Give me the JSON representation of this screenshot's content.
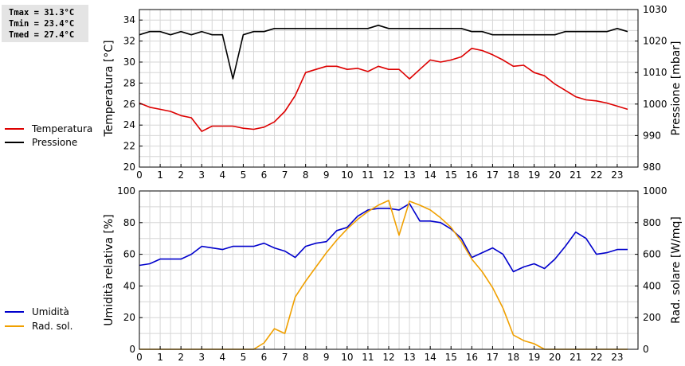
{
  "stats": {
    "tmax": "Tmax = 31.3°C",
    "tmin": "Tmin = 23.4°C",
    "tmed": "Tmed = 27.4°C"
  },
  "colors": {
    "temperature": "#dd0000",
    "pressure": "#000000",
    "humidity": "#0000cc",
    "radiation": "#f0a000",
    "grid": "#d6d6d6"
  },
  "legend_top": [
    {
      "label": "Temperatura",
      "color": "#dd0000"
    },
    {
      "label": "Pressione",
      "color": "#000000"
    }
  ],
  "legend_bottom": [
    {
      "label": "Umidità",
      "color": "#0000cc"
    },
    {
      "label": "Rad. sol.",
      "color": "#f0a000"
    }
  ],
  "chart_data": [
    {
      "type": "line",
      "xlim": [
        0,
        24
      ],
      "xticks": [
        "0",
        "1",
        "2",
        "3",
        "4",
        "5",
        "6",
        "7",
        "8",
        "9",
        "10",
        "11",
        "12",
        "13",
        "14",
        "15",
        "16",
        "17",
        "18",
        "19",
        "20",
        "21",
        "22",
        "23"
      ],
      "ylabel_left": "Temperatura [°C]",
      "ylim_left": [
        20,
        35
      ],
      "yticks_left": [
        20,
        22,
        24,
        26,
        28,
        30,
        32,
        34
      ],
      "ylabel_right": "Pressione [mbar]",
      "ylim_right": [
        980,
        1030
      ],
      "yticks_right": [
        980,
        990,
        1000,
        1010,
        1020,
        1030
      ],
      "grid": true,
      "series": [
        {
          "name": "Temperatura",
          "axis": "left",
          "color": "#dd0000",
          "x": [
            0,
            0.5,
            1,
            1.5,
            2,
            2.5,
            3,
            3.5,
            4,
            4.5,
            5,
            5.5,
            6,
            6.5,
            7,
            7.5,
            8,
            8.5,
            9,
            9.5,
            10,
            10.5,
            11,
            11.5,
            12,
            12.5,
            13,
            13.5,
            14,
            14.5,
            15,
            15.5,
            16,
            16.5,
            17,
            17.5,
            18,
            18.5,
            19,
            19.5,
            20,
            20.5,
            21,
            21.5,
            22,
            22.5,
            23,
            23.5
          ],
          "values": [
            26.1,
            25.7,
            25.5,
            25.3,
            24.9,
            24.7,
            23.4,
            23.9,
            23.9,
            23.9,
            23.7,
            23.6,
            23.8,
            24.3,
            25.3,
            26.8,
            29.0,
            29.3,
            29.6,
            29.6,
            29.3,
            29.4,
            29.1,
            29.6,
            29.3,
            29.3,
            28.4,
            29.3,
            30.2,
            30.0,
            30.2,
            30.5,
            31.3,
            31.1,
            30.7,
            30.2,
            29.6,
            29.7,
            29.0,
            28.7,
            27.9,
            27.3,
            26.7,
            26.4,
            26.3,
            26.1,
            25.8,
            25.5
          ]
        },
        {
          "name": "Pressione",
          "axis": "right",
          "color": "#000000",
          "x": [
            0,
            0.5,
            1,
            1.5,
            2,
            2.5,
            3,
            3.5,
            4,
            4.5,
            5,
            5.5,
            6,
            6.5,
            7,
            7.5,
            8,
            8.5,
            9,
            9.5,
            10,
            10.5,
            11,
            11.5,
            12,
            12.5,
            13,
            13.5,
            14,
            14.5,
            15,
            15.5,
            16,
            16.5,
            17,
            17.5,
            18,
            18.5,
            19,
            19.5,
            20,
            20.5,
            21,
            21.5,
            22,
            22.5,
            23,
            23.5
          ],
          "values": [
            1022,
            1023,
            1023,
            1022,
            1023,
            1022,
            1023,
            1022,
            1022,
            1008,
            1022,
            1023,
            1023,
            1024,
            1024,
            1024,
            1024,
            1024,
            1024,
            1024,
            1024,
            1024,
            1024,
            1025,
            1024,
            1024,
            1024,
            1024,
            1024,
            1024,
            1024,
            1024,
            1023,
            1023,
            1022,
            1022,
            1022,
            1022,
            1022,
            1022,
            1022,
            1023,
            1023,
            1023,
            1023,
            1023,
            1024,
            1023
          ]
        }
      ]
    },
    {
      "type": "line",
      "xlim": [
        0,
        24
      ],
      "xticks": [
        "0",
        "1",
        "2",
        "3",
        "4",
        "5",
        "6",
        "7",
        "8",
        "9",
        "10",
        "11",
        "12",
        "13",
        "14",
        "15",
        "16",
        "17",
        "18",
        "19",
        "20",
        "21",
        "22",
        "23"
      ],
      "ylabel_left": "Umidità relativa [%]",
      "ylim_left": [
        0,
        100
      ],
      "yticks_left": [
        0,
        20,
        40,
        60,
        80,
        100
      ],
      "ylabel_right": "Rad. solare [W/mq]",
      "ylim_right": [
        0,
        1000
      ],
      "yticks_right": [
        0,
        200,
        400,
        600,
        800,
        1000
      ],
      "grid": true,
      "series": [
        {
          "name": "Umidità",
          "axis": "left",
          "color": "#0000cc",
          "x": [
            0,
            0.5,
            1,
            1.5,
            2,
            2.5,
            3,
            3.5,
            4,
            4.5,
            5,
            5.5,
            6,
            6.5,
            7,
            7.5,
            8,
            8.5,
            9,
            9.5,
            10,
            10.5,
            11,
            11.5,
            12,
            12.5,
            13,
            13.5,
            14,
            14.5,
            15,
            15.5,
            16,
            16.5,
            17,
            17.5,
            18,
            18.5,
            19,
            19.5,
            20,
            20.5,
            21,
            21.5,
            22,
            22.5,
            23,
            23.5
          ],
          "values": [
            53,
            54,
            57,
            57,
            57,
            60,
            65,
            64,
            63,
            65,
            65,
            65,
            67,
            64,
            62,
            58,
            65,
            67,
            68,
            75,
            77,
            84,
            88,
            89,
            89,
            88,
            92,
            81,
            81,
            80,
            76,
            70,
            58,
            61,
            64,
            60,
            49,
            52,
            54,
            51,
            57,
            65,
            74,
            70,
            60,
            61,
            63,
            63
          ]
        },
        {
          "name": "Rad. sol.",
          "axis": "right",
          "color": "#f0a000",
          "x": [
            0,
            0.5,
            1,
            1.5,
            2,
            2.5,
            3,
            3.5,
            4,
            4.5,
            5,
            5.5,
            6,
            6.5,
            7,
            7.5,
            8,
            8.5,
            9,
            9.5,
            10,
            10.5,
            11,
            11.5,
            12,
            12.5,
            13,
            13.5,
            14,
            14.5,
            15,
            15.5,
            16,
            16.5,
            17,
            17.5,
            18,
            18.5,
            19,
            19.5,
            20,
            20.5,
            21,
            21.5,
            22,
            22.5,
            23,
            23.5
          ],
          "values": [
            0,
            0,
            0,
            0,
            0,
            0,
            0,
            0,
            0,
            0,
            0,
            0,
            40,
            130,
            100,
            330,
            430,
            520,
            610,
            690,
            760,
            820,
            870,
            910,
            940,
            720,
            935,
            910,
            880,
            830,
            770,
            680,
            570,
            490,
            390,
            260,
            90,
            55,
            35,
            0,
            0,
            0,
            0,
            0,
            0,
            0,
            0,
            0
          ]
        }
      ]
    }
  ]
}
